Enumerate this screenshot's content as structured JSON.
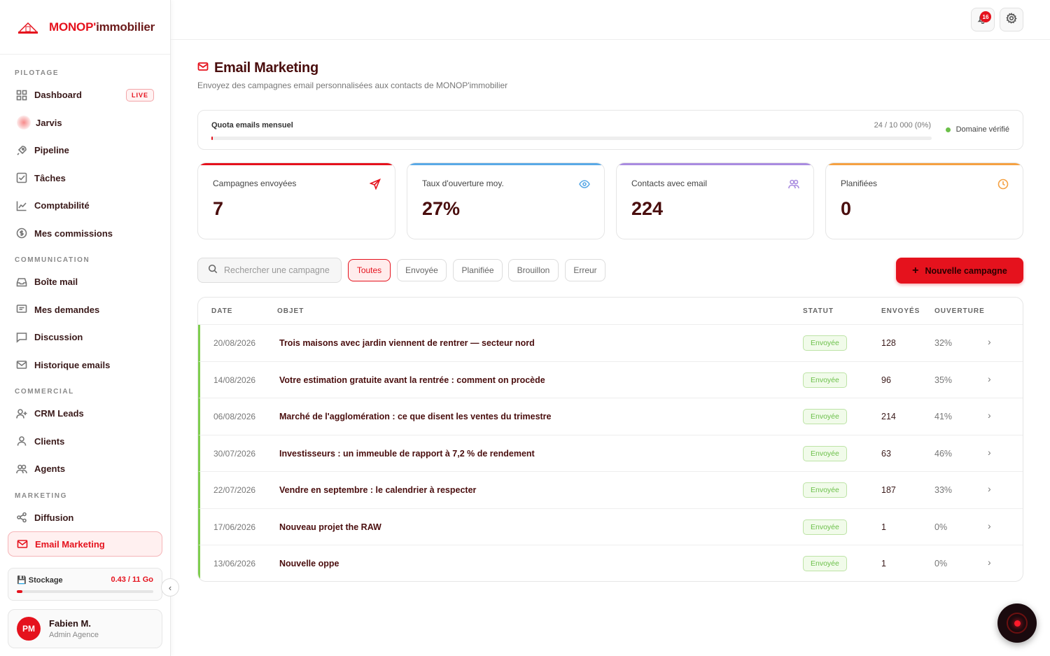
{
  "brand": {
    "name_red": "MONOP'",
    "name_dark": "immobilier"
  },
  "sidebar": {
    "sections": [
      {
        "title": "PILOTAGE",
        "items": [
          {
            "label": "Dashboard",
            "icon": "grid-icon",
            "badge": "LIVE"
          },
          {
            "label": "Jarvis",
            "icon": "jarvis-orb-icon"
          },
          {
            "label": "Pipeline",
            "icon": "rocket-icon"
          },
          {
            "label": "Tâches",
            "icon": "checkbox-icon"
          },
          {
            "label": "Comptabilité",
            "icon": "line-chart-icon"
          },
          {
            "label": "Mes commissions",
            "icon": "dollar-circle-icon"
          }
        ]
      },
      {
        "title": "COMMUNICATION",
        "items": [
          {
            "label": "Boîte mail",
            "icon": "inbox-icon"
          },
          {
            "label": "Mes demandes",
            "icon": "message-square-icon"
          },
          {
            "label": "Discussion",
            "icon": "chat-icon"
          },
          {
            "label": "Historique emails",
            "icon": "mail-icon"
          }
        ]
      },
      {
        "title": "COMMERCIAL",
        "items": [
          {
            "label": "CRM Leads",
            "icon": "user-plus-icon"
          },
          {
            "label": "Clients",
            "icon": "user-icon"
          },
          {
            "label": "Agents",
            "icon": "users-icon"
          }
        ]
      },
      {
        "title": "MARKETING",
        "items": [
          {
            "label": "Diffusion",
            "icon": "share-icon"
          },
          {
            "label": "Email Marketing",
            "icon": "mail-icon",
            "active": true
          }
        ]
      }
    ],
    "storage": {
      "label": "Stockage",
      "value": "0.43 / 11 Go",
      "fraction": 0.04
    },
    "user": {
      "initials": "PM",
      "name": "Fabien M.",
      "role": "Admin Agence"
    }
  },
  "topbar": {
    "notifications_count": "16"
  },
  "page": {
    "title": "Email Marketing",
    "subtitle": "Envoyez des campagnes email personnalisées aux contacts de MONOP'immobilier"
  },
  "quota": {
    "label": "Quota emails mensuel",
    "value": "24 / 10 000 (0%)",
    "fraction": 0.0024,
    "domain": "Domaine vérifié"
  },
  "stats": [
    {
      "label": "Campagnes envoyées",
      "value": "7",
      "color": "#e5121d",
      "icon": "send-icon"
    },
    {
      "label": "Taux d'ouverture moy.",
      "value": "27%",
      "color": "#5aa9e6",
      "icon": "eye-icon"
    },
    {
      "label": "Contacts avec email",
      "value": "224",
      "color": "#a98be0",
      "icon": "users-icon"
    },
    {
      "label": "Planifiées",
      "value": "0",
      "color": "#f5a142",
      "icon": "clock-icon"
    }
  ],
  "search": {
    "placeholder": "Rechercher une campagne"
  },
  "filters": [
    "Toutes",
    "Envoyée",
    "Planifiée",
    "Brouillon",
    "Erreur"
  ],
  "new_button": "Nouvelle campagne",
  "table": {
    "headers": {
      "date": "DATE",
      "object": "OBJET",
      "status": "STATUT",
      "sent": "ENVOYÉS",
      "open": "OUVERTURE"
    },
    "rows": [
      {
        "date": "20/08/2026",
        "object": "Trois maisons avec jardin viennent de rentrer — secteur nord",
        "status": "Envoyée",
        "sent": "128",
        "open": "32%"
      },
      {
        "date": "14/08/2026",
        "object": "Votre estimation gratuite avant la rentrée : comment on procède",
        "status": "Envoyée",
        "sent": "96",
        "open": "35%"
      },
      {
        "date": "06/08/2026",
        "object": "Marché de l'agglomération : ce que disent les ventes du trimestre",
        "status": "Envoyée",
        "sent": "214",
        "open": "41%"
      },
      {
        "date": "30/07/2026",
        "object": "Investisseurs : un immeuble de rapport à 7,2 % de rendement",
        "status": "Envoyée",
        "sent": "63",
        "open": "46%"
      },
      {
        "date": "22/07/2026",
        "object": "Vendre en septembre : le calendrier à respecter",
        "status": "Envoyée",
        "sent": "187",
        "open": "33%"
      },
      {
        "date": "17/06/2026",
        "object": "Nouveau projet the RAW",
        "status": "Envoyée",
        "sent": "1",
        "open": "0%"
      },
      {
        "date": "13/06/2026",
        "object": "Nouvelle oppe",
        "status": "Envoyée",
        "sent": "1",
        "open": "0%"
      }
    ]
  }
}
